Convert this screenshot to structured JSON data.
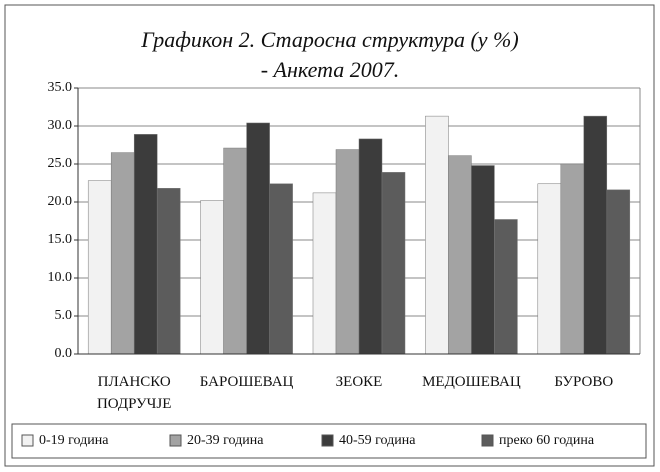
{
  "chart_data": {
    "type": "bar",
    "title": [
      "Графикон 2. Старосна структура  (у %)",
      "- Анкета 2007."
    ],
    "categories": [
      "ПЛАНСКО ПОДРУЧЈЕ",
      "БАРОШЕВАЦ",
      "ЗЕОКЕ",
      "МЕДОШЕВАЦ",
      "БУРОВО"
    ],
    "series": [
      {
        "name": "0-19 година",
        "color": "#f2f2f2",
        "values": [
          22.8,
          20.2,
          21.2,
          31.3,
          22.4
        ]
      },
      {
        "name": "20-39 година",
        "color": "#a3a3a3",
        "values": [
          26.5,
          27.1,
          26.9,
          26.1,
          25.0
        ]
      },
      {
        "name": "40-59 година",
        "color": "#3c3c3c",
        "values": [
          28.9,
          30.4,
          28.3,
          24.8,
          31.3
        ]
      },
      {
        "name": "преко 60 година",
        "color": "#5c5c5c",
        "values": [
          21.8,
          22.4,
          23.9,
          17.7,
          21.6
        ]
      }
    ],
    "ylim": [
      0,
      35
    ],
    "yticks": [
      {
        "value": 0,
        "label": "0.0"
      },
      {
        "value": 5,
        "label": "5.0"
      },
      {
        "value": 10,
        "label": "10.0"
      },
      {
        "value": 15,
        "label": "15.0"
      },
      {
        "value": 20,
        "label": "20.0"
      },
      {
        "value": 25,
        "label": "25.0"
      },
      {
        "value": 30,
        "label": "30.0"
      },
      {
        "value": 35,
        "label": "35.0"
      }
    ],
    "grid": true,
    "legend": "bottom"
  }
}
